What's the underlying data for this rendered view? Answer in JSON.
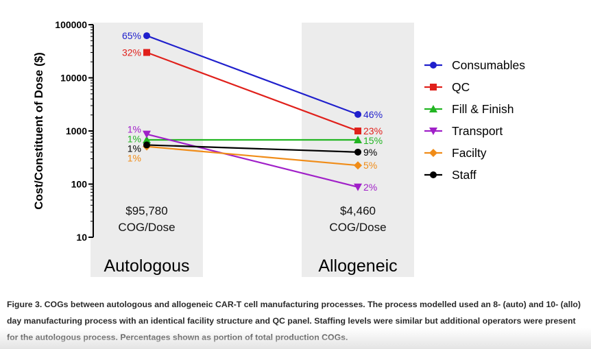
{
  "chart_data": {
    "type": "line",
    "ylabel": "Cost/Constituent of  Dose  ($)",
    "yscale": "log",
    "ylim": [
      10,
      100000
    ],
    "yticks": [
      "10",
      "100",
      "1000",
      "10000",
      "100000"
    ],
    "categories": [
      "Autologous",
      "Allogeneic"
    ],
    "totals": [
      {
        "value": "$95,780",
        "unit": "COG/Dose"
      },
      {
        "value": "$4,460",
        "unit": "COG/Dose"
      }
    ],
    "legend_position": "right",
    "series": [
      {
        "name": "Consumables",
        "color": "#1f1fcc",
        "marker": "circle",
        "values": [
          62000,
          2050
        ],
        "labels": [
          "65%",
          "46%"
        ]
      },
      {
        "name": "QC",
        "color": "#e0201b",
        "marker": "square",
        "values": [
          30000,
          1000
        ],
        "labels": [
          "32%",
          "23%"
        ]
      },
      {
        "name": "Fill & Finish",
        "color": "#22b522",
        "marker": "triangle-up",
        "values": [
          680,
          680
        ],
        "labels": [
          "1%",
          "15%"
        ]
      },
      {
        "name": "Transport",
        "color": "#a020c8",
        "marker": "triangle-down",
        "values": [
          870,
          88
        ],
        "labels": [
          "1%",
          "2%"
        ]
      },
      {
        "name": "Facilty",
        "color": "#f08c18",
        "marker": "diamond",
        "values": [
          510,
          225
        ],
        "labels": [
          "1%",
          "5%"
        ]
      },
      {
        "name": "Staff",
        "color": "#000000",
        "marker": "circle",
        "values": [
          545,
          400
        ],
        "labels": [
          "1%",
          "9%"
        ]
      }
    ]
  },
  "caption": "Figure 3. COGs between autologous and allogeneic CAR-T cell manufacturing processes. The process modelled used an 8- (auto) and 10- (allo) day manufacturing process with an identical facility structure and QC panel. Staffing levels were similar but additional operators were present for the autologous process. Percentages shown as portion of total production COGs."
}
